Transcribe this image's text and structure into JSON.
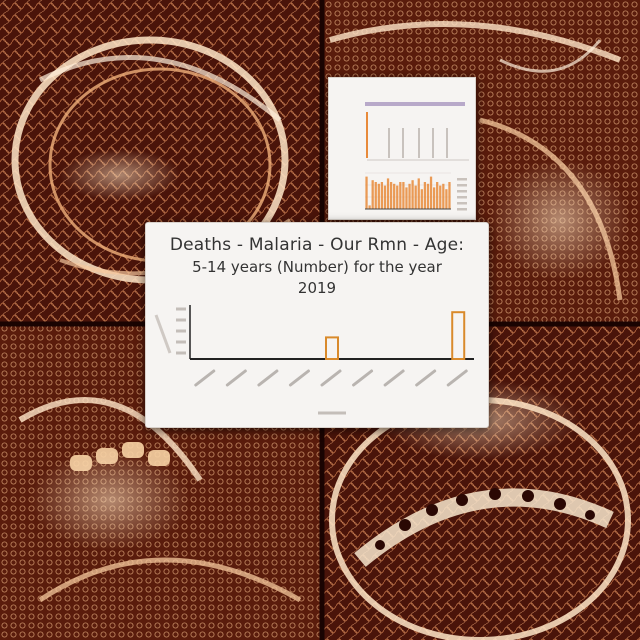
{
  "scene": {
    "background": "#2a0804",
    "tissue_color": "#e8a070",
    "highlight_color": "#fff0dc",
    "accent_color": "#c2661f"
  },
  "main_chart": {
    "title_line_1": "Deaths - Malaria - Our Rmn - Age:",
    "title_line_2": "5-14 years (Number) for the year",
    "title_line_3": "2019"
  },
  "chart_data": [
    {
      "type": "bar",
      "title": "Deaths - Malaria - Our Rmn - Age: 5-14 years (Number) for the year 2019",
      "categories": [
        "",
        "",
        "",
        "",
        "",
        "",
        "",
        "",
        ""
      ],
      "values": [
        0,
        0,
        0,
        0,
        24,
        0,
        0,
        0,
        52
      ],
      "ylim": [
        0,
        60
      ],
      "grid": false,
      "bar_color": "#d98a2b"
    },
    {
      "type": "bar",
      "title": "",
      "categories": [
        "",
        "",
        "",
        "",
        "",
        "",
        "",
        "",
        "",
        "",
        "",
        "",
        "",
        "",
        "",
        "",
        "",
        "",
        "",
        "",
        "",
        "",
        "",
        "",
        "",
        "",
        "",
        ""
      ],
      "values": [
        36,
        4,
        32,
        30,
        28,
        30,
        26,
        34,
        30,
        28,
        26,
        30,
        30,
        24,
        28,
        32,
        26,
        34,
        22,
        30,
        28,
        36,
        24,
        30,
        26,
        28,
        22,
        30
      ],
      "ylim": [
        0,
        40
      ],
      "grid": true,
      "bar_color": "#e88a3a"
    }
  ]
}
